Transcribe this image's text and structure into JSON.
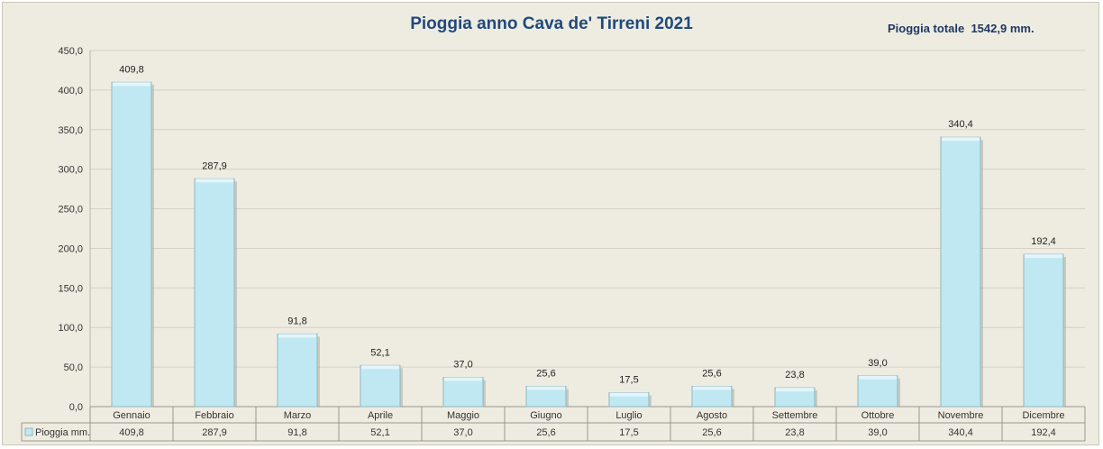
{
  "chart_data": {
    "type": "bar",
    "title": "Pioggia anno Cava de' Tirreni 2021",
    "subtitle": "Pioggia totale  1542,9 mm.",
    "categories": [
      "Gennaio",
      "Febbraio",
      "Marzo",
      "Aprile",
      "Maggio",
      "Giugno",
      "Luglio",
      "Agosto",
      "Settembre",
      "Ottobre",
      "Novembre",
      "Dicembre"
    ],
    "series": [
      {
        "name": "Pioggia mm.",
        "values": [
          409.8,
          287.9,
          91.8,
          52.1,
          37.0,
          25.6,
          17.5,
          25.6,
          23.8,
          39.0,
          340.4,
          192.4
        ]
      }
    ],
    "value_labels": [
      "409,8",
      "287,9",
      "91,8",
      "52,1",
      "37,0",
      "25,6",
      "17,5",
      "25,6",
      "23,8",
      "39,0",
      "340,4",
      "192,4"
    ],
    "y_ticks": [
      "0,0",
      "50,0",
      "100,0",
      "150,0",
      "200,0",
      "250,0",
      "300,0",
      "350,0",
      "400,0",
      "450,0"
    ],
    "ylim": [
      0,
      450
    ],
    "grid": true,
    "data_table": true,
    "colors": {
      "bar_fill": "#bfe8f2",
      "bar_stroke": "#8fb8c4",
      "grid": "#d4d1c4",
      "title": "#1f497d"
    }
  }
}
